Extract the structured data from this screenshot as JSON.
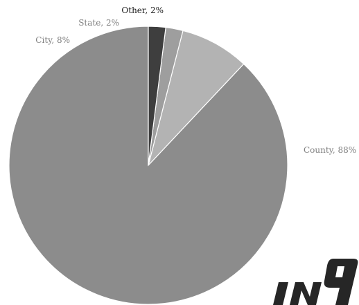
{
  "chart_data": {
    "type": "pie",
    "slices": [
      {
        "label": "County",
        "value": 88,
        "display": "County, 88%",
        "color": "#8c8c8c"
      },
      {
        "label": "City",
        "value": 8,
        "display": "City, 8%",
        "color": "#b3b3b3"
      },
      {
        "label": "State",
        "value": 2,
        "display": "State, 2%",
        "color": "#9e9e9e"
      },
      {
        "label": "Other",
        "value": 2,
        "display": "Other, 2%",
        "color": "#3e3e3e"
      }
    ],
    "start": "top",
    "direction": "counter-clockwise",
    "label_color": "#808080",
    "label_color_emphasis": "#1a1a1a"
  },
  "watermark": {
    "text": "IN9",
    "color": "#262626"
  }
}
